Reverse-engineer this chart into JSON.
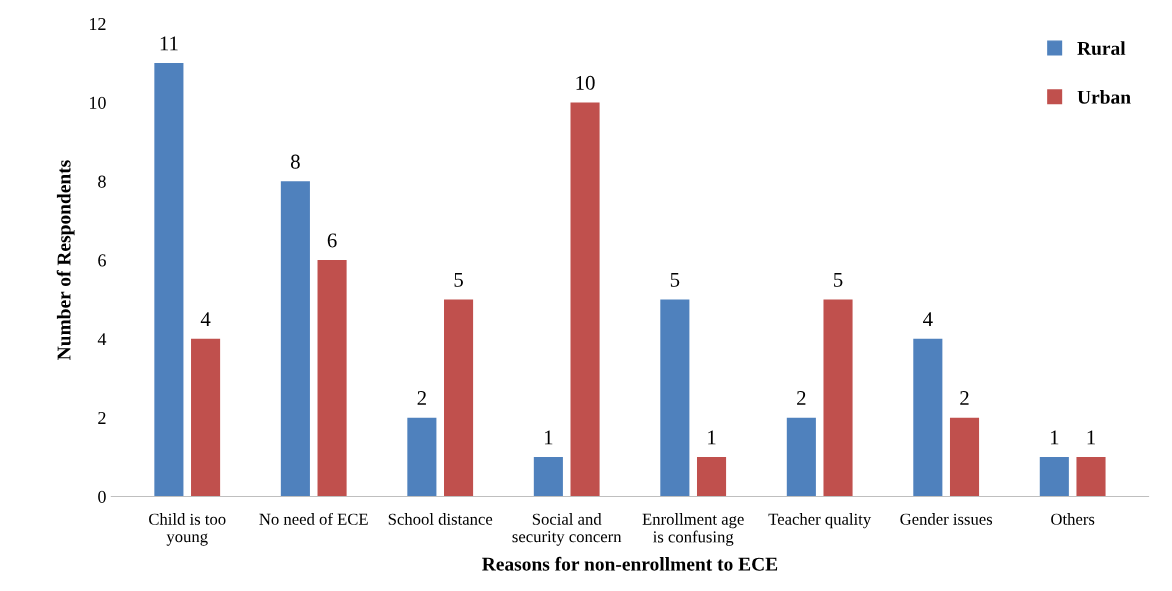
{
  "chart_data": {
    "type": "bar",
    "xlabel": "Reasons for non-enrollment to ECE",
    "ylabel": "Number of Respondents",
    "categories": [
      "Child is too\nyoung",
      "No need of ECE",
      "School distance",
      "Social and\nsecurity concern",
      "Enrollment age\nis confusing",
      "Teacher quality",
      "Gender issues",
      "Others"
    ],
    "series": [
      {
        "name": "Rural",
        "color": "#4f81bd",
        "values": [
          11,
          8,
          2,
          1,
          5,
          2,
          4,
          1
        ]
      },
      {
        "name": "Urban",
        "color": "#c0504d",
        "values": [
          4,
          6,
          5,
          10,
          1,
          5,
          2,
          1
        ]
      }
    ],
    "ylim": [
      0,
      12
    ],
    "yticks": [
      0,
      2,
      4,
      6,
      8,
      10,
      12
    ],
    "grid": false,
    "legend": "top right",
    "data_labels": true
  }
}
